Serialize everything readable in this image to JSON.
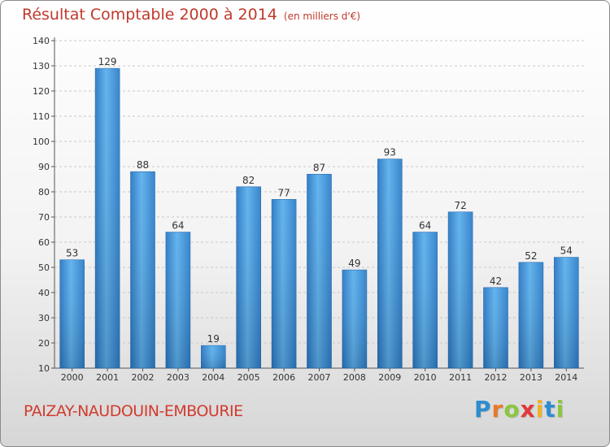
{
  "chart_data": {
    "type": "bar",
    "title": "Résultat Comptable 2000 à 2014",
    "subtitle": "(en milliers d'€)",
    "categories": [
      "2000",
      "2001",
      "2002",
      "2003",
      "2004",
      "2005",
      "2006",
      "2007",
      "2008",
      "2009",
      "2010",
      "2011",
      "2012",
      "2013",
      "2014"
    ],
    "values": [
      53,
      129,
      88,
      64,
      19,
      82,
      77,
      87,
      49,
      93,
      64,
      72,
      42,
      52,
      54
    ],
    "ylim": [
      10,
      140
    ],
    "yticks": [
      10,
      20,
      30,
      40,
      50,
      60,
      70,
      80,
      90,
      100,
      110,
      120,
      130,
      140
    ],
    "grid": true,
    "bar_color": "#3a90d8"
  },
  "commune": "PAIZAY-NAUDOUIN-EMBOURIE",
  "brand": {
    "letters": [
      "P",
      "r",
      "o",
      "x",
      "i",
      "t",
      "i"
    ],
    "colors": [
      "#2e8ccf",
      "#e8792b",
      "#8cc63f",
      "#e03a3a",
      "#f0b323",
      "#2e8ccf",
      "#8cc63f"
    ]
  }
}
